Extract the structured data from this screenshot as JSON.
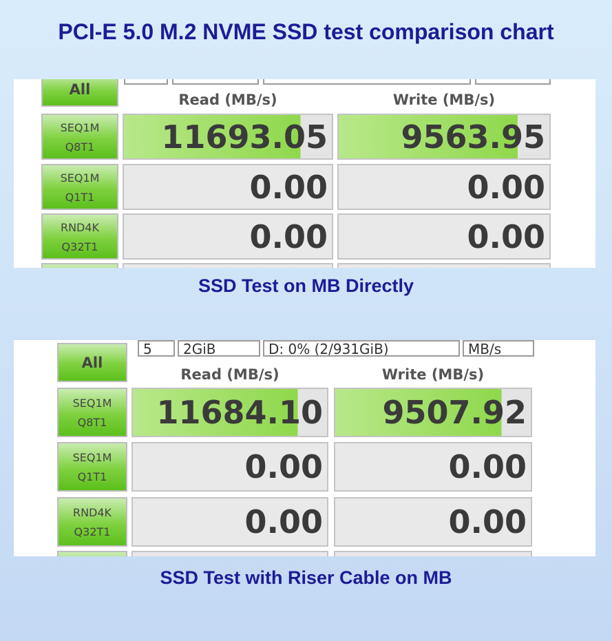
{
  "title": "PCI-E 5.0 M.2 NVME SSD test comparison chart",
  "panels": [
    {
      "caption": "SSD Test on MB Directly",
      "all": "All",
      "read_header": "Read (MB/s)",
      "write_header": "Write (MB/s)",
      "rows": [
        {
          "test": "SEQ1M",
          "params": "Q8T1",
          "read": "11693.05",
          "write": "9563.95"
        },
        {
          "test": "SEQ1M",
          "params": "Q1T1",
          "read": "0.00",
          "write": "0.00"
        },
        {
          "test": "RND4K",
          "params": "Q32T1",
          "read": "0.00",
          "write": "0.00"
        }
      ]
    },
    {
      "caption": "SSD Test with Riser Cable on MB",
      "all": "All",
      "read_header": "Read (MB/s)",
      "write_header": "Write (MB/s)",
      "settings": [
        "5",
        "2GiB",
        "D: 0% (2/931GiB)",
        "MB/s"
      ],
      "rows": [
        {
          "test": "SEQ1M",
          "params": "Q8T1",
          "read": "11684.10",
          "write": "9507.92"
        },
        {
          "test": "SEQ1M",
          "params": "Q1T1",
          "read": "0.00",
          "write": "0.00"
        },
        {
          "test": "RND4K",
          "params": "Q32T1",
          "read": "0.00",
          "write": "0.00"
        }
      ]
    }
  ]
}
